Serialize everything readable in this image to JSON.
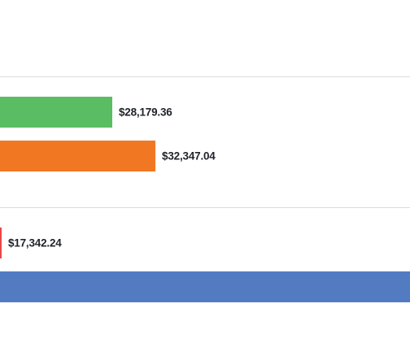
{
  "chart_data": {
    "type": "bar",
    "orientation": "horizontal",
    "title": "",
    "xlabel": "",
    "ylabel": "",
    "grid": false,
    "groups": [
      {
        "bars": [
          {
            "value": 28179.36,
            "label": "$28,179.36",
            "color": "#5bbd63"
          },
          {
            "value": 32347.04,
            "label": "$32,347.04",
            "color": "#f17723"
          }
        ]
      },
      {
        "bars": [
          {
            "value": 17342.24,
            "label": "$17,342.24",
            "color": "#e84747"
          },
          {
            "value": null,
            "label": "",
            "color": "#527bc2"
          }
        ]
      }
    ]
  }
}
